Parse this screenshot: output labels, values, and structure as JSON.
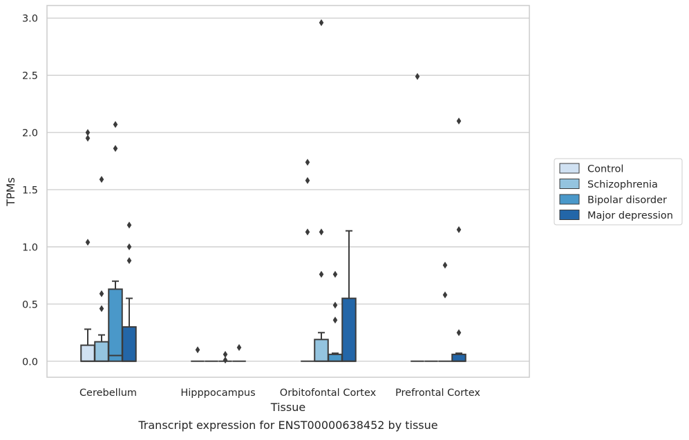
{
  "chart_data": {
    "type": "box",
    "caption": "Transcript expression for ENST00000638452 by tissue",
    "xlabel": "Tissue",
    "ylabel": "TPMs",
    "ylim": [
      -0.14,
      3.11
    ],
    "yticks": [
      0.0,
      0.5,
      1.0,
      1.5,
      2.0,
      2.5,
      3.0
    ],
    "ytick_labels": [
      "0.0",
      "0.5",
      "1.0",
      "1.5",
      "2.0",
      "2.5",
      "3.0"
    ],
    "grid": "horizontal",
    "legend_position": "right",
    "categories": [
      "Cerebellum",
      "Hipppocampus",
      "Orbitofontal Cortex",
      "Prefrontal Cortex"
    ],
    "series": [
      {
        "name": "Control",
        "color": "#d0e1f2",
        "boxes": [
          {
            "q1": 0.0,
            "median": 0.0,
            "q3": 0.14,
            "whisker_low": 0.0,
            "whisker_high": 0.28,
            "outliers": [
              1.04,
              1.95,
              2.0
            ]
          },
          {
            "q1": 0.0,
            "median": 0.0,
            "q3": 0.0,
            "whisker_low": 0.0,
            "whisker_high": 0.0,
            "outliers": [
              0.1
            ]
          },
          {
            "q1": 0.0,
            "median": 0.0,
            "q3": 0.0,
            "whisker_low": 0.0,
            "whisker_high": 0.0,
            "outliers": [
              1.13,
              1.58,
              1.74
            ]
          },
          {
            "q1": 0.0,
            "median": 0.0,
            "q3": 0.0,
            "whisker_low": 0.0,
            "whisker_high": 0.0,
            "outliers": [
              2.49
            ]
          }
        ]
      },
      {
        "name": "Schizophrenia",
        "color": "#94c4df",
        "boxes": [
          {
            "q1": 0.0,
            "median": 0.0,
            "q3": 0.17,
            "whisker_low": 0.0,
            "whisker_high": 0.23,
            "outliers": [
              0.46,
              0.59,
              1.59
            ]
          },
          {
            "q1": 0.0,
            "median": 0.0,
            "q3": 0.0,
            "whisker_low": 0.0,
            "whisker_high": 0.0,
            "outliers": []
          },
          {
            "q1": 0.0,
            "median": 0.0,
            "q3": 0.19,
            "whisker_low": 0.0,
            "whisker_high": 0.25,
            "outliers": [
              0.76,
              1.13,
              2.96
            ]
          },
          {
            "q1": 0.0,
            "median": 0.0,
            "q3": 0.0,
            "whisker_low": 0.0,
            "whisker_high": 0.0,
            "outliers": []
          }
        ]
      },
      {
        "name": "Bipolar disorder",
        "color": "#4a98c9",
        "boxes": [
          {
            "q1": 0.0,
            "median": 0.05,
            "q3": 0.63,
            "whisker_low": 0.0,
            "whisker_high": 0.7,
            "outliers": [
              1.86,
              2.07
            ]
          },
          {
            "q1": 0.0,
            "median": 0.0,
            "q3": 0.0,
            "whisker_low": 0.0,
            "whisker_high": 0.0,
            "outliers": [
              0.01,
              0.06
            ]
          },
          {
            "q1": 0.0,
            "median": 0.0,
            "q3": 0.06,
            "whisker_low": 0.0,
            "whisker_high": 0.07,
            "outliers": [
              0.36,
              0.49,
              0.76
            ]
          },
          {
            "q1": 0.0,
            "median": 0.0,
            "q3": 0.0,
            "whisker_low": 0.0,
            "whisker_high": 0.0,
            "outliers": [
              0.58,
              0.84
            ]
          }
        ]
      },
      {
        "name": "Major depression",
        "color": "#2366a8",
        "boxes": [
          {
            "q1": 0.0,
            "median": 0.0,
            "q3": 0.3,
            "whisker_low": 0.0,
            "whisker_high": 0.55,
            "outliers": [
              0.88,
              1.0,
              1.19
            ]
          },
          {
            "q1": 0.0,
            "median": 0.0,
            "q3": 0.0,
            "whisker_low": 0.0,
            "whisker_high": 0.0,
            "outliers": [
              0.12
            ]
          },
          {
            "q1": 0.0,
            "median": 0.0,
            "q3": 0.55,
            "whisker_low": 0.0,
            "whisker_high": 1.14,
            "outliers": []
          },
          {
            "q1": 0.0,
            "median": 0.0,
            "q3": 0.06,
            "whisker_low": 0.0,
            "whisker_high": 0.07,
            "outliers": [
              0.25,
              1.15,
              2.1
            ]
          }
        ]
      }
    ]
  }
}
